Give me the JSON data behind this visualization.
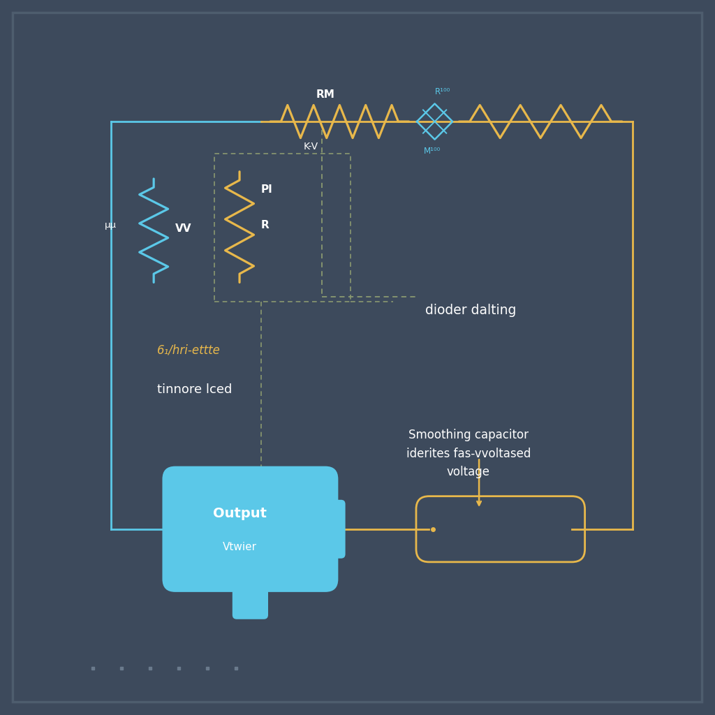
{
  "bg_color": "#3d4a5c",
  "wire_color_blue": "#5bc8e8",
  "wire_color_yellow": "#e8b84b",
  "wire_color_dashed": "#8a9970",
  "text_color_white": "#ffffff",
  "text_color_yellow": "#e8b84b",
  "text_color_blue": "#5bc8e8",
  "label_RM": "RM",
  "label_KV": "K-V",
  "label_R100": "R¹⁰⁰",
  "label_M100": "M¹⁰⁰",
  "label_dioder": "dioder dalting",
  "label_vv": "VV",
  "label_pi": "PI",
  "label_r": "R",
  "label_mu": "μμ",
  "label_6hri": "6₁/hri-ettte",
  "label_tinnore": "tinnore lced",
  "label_smoothing": "Smoothing capacitor\niderites fas-vvoltased\nvoltage",
  "label_output": "Output",
  "label_vtwier": "Vtwier"
}
